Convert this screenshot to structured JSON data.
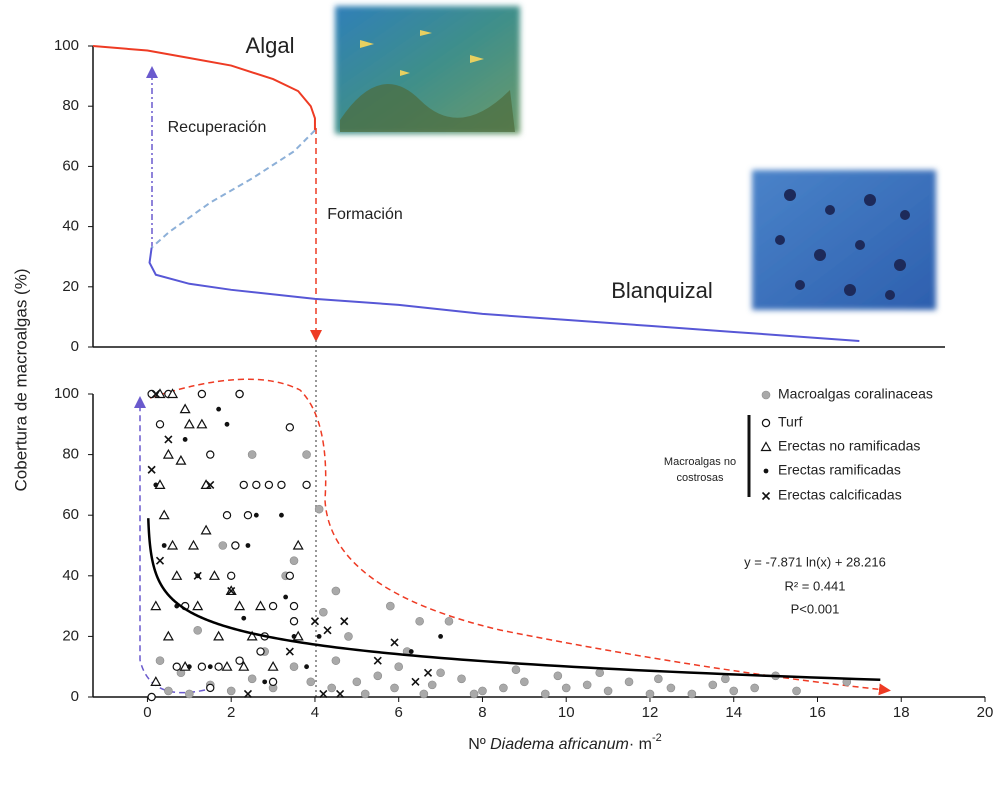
{
  "chart_data": [
    {
      "type": "line",
      "xlim": [
        -1.3,
        20
      ],
      "ylim": [
        0,
        100
      ],
      "yticks": [
        0,
        20,
        40,
        60,
        80,
        100
      ],
      "lines": [
        {
          "color": "#ee3b24",
          "dash": false,
          "x": [
            -1.3,
            0,
            1,
            2,
            3,
            3.6,
            3.9,
            4.0,
            4.0
          ],
          "y": [
            100,
            98.5,
            96,
            93.5,
            89,
            85,
            80,
            76,
            72
          ]
        },
        {
          "color": "#8db0d8",
          "dash": true,
          "x": [
            4.0,
            3.5,
            2.5,
            1.5,
            0.5,
            0.1
          ],
          "y": [
            72,
            65,
            56,
            48,
            38,
            33
          ]
        },
        {
          "color": "#5757d6",
          "dash": false,
          "x": [
            0.1,
            0.05,
            0.2,
            1,
            2,
            4,
            6,
            8,
            10,
            12,
            14,
            16,
            17
          ],
          "y": [
            33,
            28,
            24,
            21,
            19,
            16,
            14,
            11,
            9,
            7,
            5,
            3,
            2
          ]
        }
      ],
      "annotations": {
        "algal": "Algal",
        "recovery": "Recuperación",
        "formation": "Formación",
        "barren": "Blanquizal"
      }
    },
    {
      "type": "scatter",
      "ylabel": "Cobertura de macroalgas (%)",
      "xlabel": {
        "prefix": "Nº ",
        "italic": "Diadema africanum",
        "suffix": "· m",
        "sup": "-2"
      },
      "xlim": [
        -1.3,
        20
      ],
      "xticks": [
        0,
        2,
        4,
        6,
        8,
        10,
        12,
        14,
        16,
        18,
        20
      ],
      "ylim": [
        0,
        100
      ],
      "yticks": [
        0,
        20,
        40,
        60,
        80,
        100
      ],
      "legend_group": "Macroalgas no costrosas",
      "series": [
        {
          "name": "Macroalgas coralinaceas",
          "marker": "gray-circle",
          "color": "#a9a9a9",
          "x": [
            2.2,
            3.8,
            4.1,
            3.5,
            4.5,
            6.5,
            7.2,
            5.8,
            3.3,
            4.2,
            14.5,
            16.7,
            15.5,
            12,
            10,
            9,
            8,
            7,
            6,
            5,
            4.5,
            5.5,
            6.8,
            7.5,
            8.5,
            9.5,
            10.5,
            11,
            11.5,
            12.5,
            13,
            13.5,
            14,
            3,
            2.5,
            2,
            1.5,
            1,
            0.5,
            3.5,
            4.8,
            2.8,
            6.2,
            5.2,
            7.8,
            8.8,
            9.8,
            1.2,
            1.8,
            2.5,
            0.3,
            0.8,
            3.9,
            4.4,
            5.9,
            6.6,
            10.8,
            12.2,
            13.8,
            15
          ],
          "y": [
            100,
            80,
            62,
            45,
            35,
            25,
            25,
            30,
            40,
            28,
            3,
            5,
            2,
            1,
            3,
            5,
            2,
            8,
            10,
            5,
            12,
            7,
            4,
            6,
            3,
            1,
            4,
            2,
            5,
            3,
            1,
            4,
            2,
            3,
            6,
            2,
            4,
            1,
            2,
            10,
            20,
            15,
            15,
            1,
            1,
            9,
            7,
            22,
            50,
            80,
            12,
            8,
            5,
            3,
            3,
            1,
            8,
            6,
            6,
            7
          ]
        },
        {
          "name": "Turf",
          "marker": "open-circle",
          "color": "#111111",
          "x": [
            0.1,
            0.5,
            1.3,
            2.2,
            3.4,
            2.3,
            2.6,
            2.9,
            3.2,
            3.8,
            1.9,
            2.4,
            2.1,
            3.4,
            3.5,
            3.5,
            3,
            2.8,
            1.7,
            1.3,
            3,
            2.2,
            0.7,
            0.1,
            1.5,
            2.7,
            0.9,
            1.5,
            0.3,
            2.0
          ],
          "y": [
            100,
            100,
            100,
            100,
            89,
            70,
            70,
            70,
            70,
            70,
            60,
            60,
            50,
            40,
            30,
            25,
            30,
            20,
            10,
            10,
            5,
            12,
            10,
            0,
            3,
            15,
            30,
            80,
            90,
            40
          ]
        },
        {
          "name": "Erectas no ramificadas",
          "marker": "triangle",
          "color": "#111111",
          "x": [
            0.3,
            0.6,
            0.9,
            1.0,
            1.3,
            0.5,
            0.8,
            1.4,
            0.4,
            1.1,
            0.7,
            1.6,
            0.2,
            1.2,
            2.7,
            3.6,
            1.7,
            2.5,
            3.6,
            0.5,
            0.9,
            2.3,
            3.0,
            1.9,
            0.2,
            1.4,
            2.0,
            0.3,
            0.6,
            2.2
          ],
          "y": [
            100,
            100,
            95,
            90,
            90,
            80,
            78,
            70,
            60,
            50,
            40,
            40,
            30,
            30,
            30,
            50,
            20,
            20,
            20,
            20,
            10,
            10,
            10,
            10,
            5,
            55,
            35,
            70,
            50,
            30
          ]
        },
        {
          "name": "Erectas ramificadas",
          "marker": "dot",
          "color": "#111111",
          "x": [
            0.2,
            1.0,
            1.9,
            2.4,
            2.6,
            1.7,
            3.2,
            3.5,
            3.3,
            2.3,
            1.5,
            0.4,
            0.7,
            4.1,
            7,
            6.3,
            0.9,
            2.8,
            1.2,
            3.8
          ],
          "y": [
            70,
            10,
            90,
            50,
            60,
            95,
            60,
            20,
            33,
            26,
            10,
            50,
            30,
            20,
            20,
            15,
            85,
            5,
            40,
            10
          ]
        },
        {
          "name": "Erectas calcificadas",
          "marker": "cross",
          "color": "#111111",
          "x": [
            0.2,
            0.5,
            0.1,
            1.5,
            0.3,
            1.2,
            2.0,
            4.0,
            4.3,
            4.7,
            4.2,
            4.6,
            5.9,
            6.4,
            6.7,
            3.4,
            2.4,
            5.5
          ],
          "y": [
            100,
            85,
            75,
            70,
            45,
            40,
            35,
            25,
            22,
            25,
            1,
            1,
            18,
            5,
            8,
            15,
            1,
            12
          ]
        }
      ],
      "fit": {
        "a": -7.871,
        "b": 28.216,
        "x": [
          0.02,
          17.5
        ],
        "color": "#000000"
      },
      "equation": "y = -7.871 ln(x) + 28.216",
      "r2": "R² = 0.441",
      "p": "P<0.001"
    }
  ]
}
